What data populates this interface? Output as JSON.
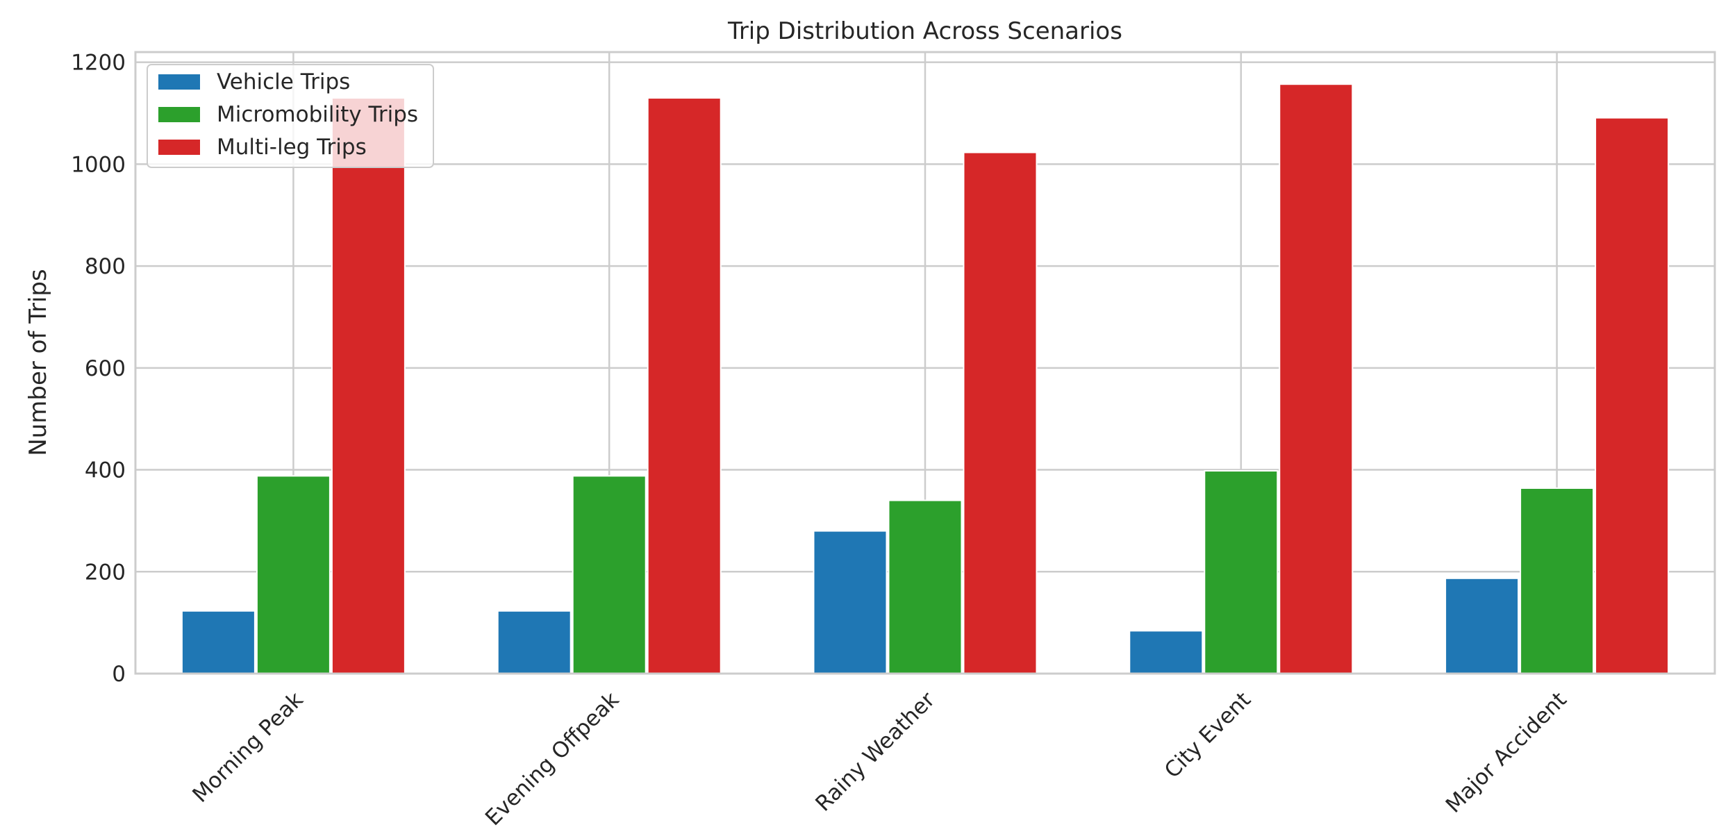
{
  "chart_data": {
    "type": "bar",
    "title": "Trip Distribution Across Scenarios",
    "xlabel": "",
    "ylabel": "Number of Trips",
    "categories": [
      "Morning Peak",
      "Evening Offpeak",
      "Rainy Weather",
      "City Event",
      "Major Accident"
    ],
    "series": [
      {
        "name": "Vehicle Trips",
        "color": "#1f77b4",
        "values": [
          123,
          123,
          280,
          84,
          187
        ]
      },
      {
        "name": "Micromobility Trips",
        "color": "#2ca02c",
        "values": [
          388,
          388,
          340,
          398,
          364
        ]
      },
      {
        "name": "Multi-leg Trips",
        "color": "#d62728",
        "values": [
          1130,
          1130,
          1023,
          1157,
          1091
        ]
      }
    ],
    "ylim": [
      0,
      1220
    ],
    "yticks": [
      0,
      200,
      400,
      600,
      800,
      1000,
      1200
    ],
    "grid": true,
    "legend_position": "top-left",
    "x_tick_rotation": -45
  }
}
